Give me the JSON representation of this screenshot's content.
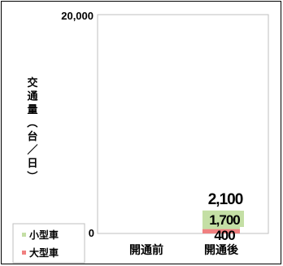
{
  "chart_data": {
    "type": "bar",
    "stacked": true,
    "ylabel": "交通量（台／日）",
    "ylim": [
      0,
      20000
    ],
    "ytick_labels": [
      "0",
      "20,000"
    ],
    "categories": [
      "開通前",
      "開通後"
    ],
    "series": [
      {
        "name": "大型車",
        "color": "#f08080",
        "values": [
          0,
          400
        ]
      },
      {
        "name": "小型車",
        "color": "#c4dfa5",
        "values": [
          0,
          1700
        ]
      }
    ],
    "totals": [
      null,
      2100
    ],
    "total_labels": [
      "",
      "2,100"
    ],
    "segment_labels": [
      {
        "series": "小型車",
        "category": "開通後",
        "text": "1,700"
      },
      {
        "series": "大型車",
        "category": "開通後",
        "text": "400"
      }
    ],
    "legend_position": "bottom-left",
    "grid": false
  }
}
